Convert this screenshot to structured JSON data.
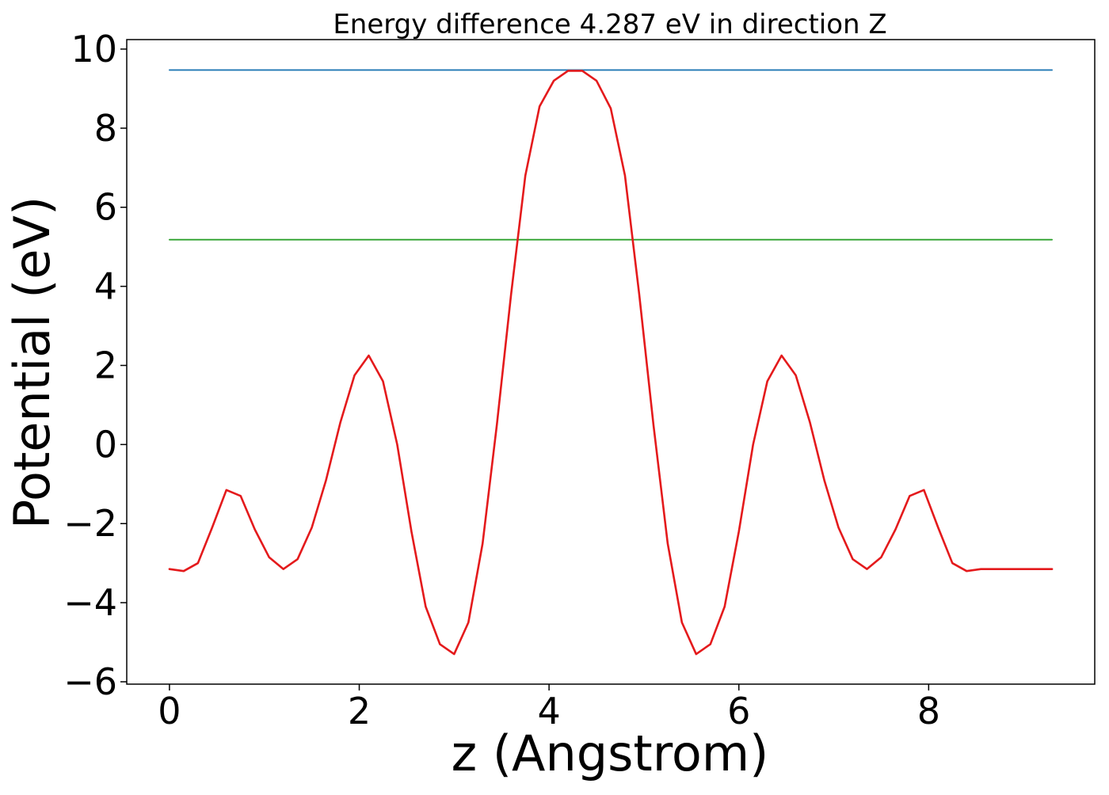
{
  "chart_data": {
    "type": "line",
    "title": "Energy difference 4.287 eV in direction Z",
    "xlabel": "z (Angstrom)",
    "ylabel": "Potential (eV)",
    "xlim": [
      -0.45,
      9.75
    ],
    "ylim": [
      -6.06,
      10.24
    ],
    "xticks": [
      0,
      2,
      4,
      6,
      8
    ],
    "yticks": [
      -6,
      -4,
      -2,
      0,
      2,
      4,
      6,
      8,
      10
    ],
    "xtick_labels": [
      "0",
      "2",
      "4",
      "6",
      "8"
    ],
    "ytick_labels": [
      "−6",
      "−4",
      "−2",
      "0",
      "2",
      "4",
      "6",
      "8",
      "10"
    ],
    "grid": false,
    "legend": "none",
    "series": [
      {
        "color": "#1f77b4",
        "x": [
          0.0,
          9.3
        ],
        "y": [
          9.47,
          9.47
        ]
      },
      {
        "color": "#2ca02c",
        "x": [
          0.0,
          9.3
        ],
        "y": [
          5.18,
          5.18
        ]
      },
      {
        "color": "#e41a1c",
        "x": [
          0.0,
          0.15,
          0.3,
          0.45,
          0.6,
          0.75,
          0.9,
          1.05,
          1.2,
          1.35,
          1.5,
          1.65,
          1.8,
          1.95,
          2.1,
          2.25,
          2.4,
          2.55,
          2.7,
          2.85,
          3.0,
          3.15,
          3.3,
          3.45,
          3.6,
          3.75,
          3.9,
          4.05,
          4.2,
          4.35,
          4.5,
          4.65,
          4.8,
          4.95,
          5.1,
          5.25,
          5.4,
          5.55,
          5.7,
          5.85,
          6.0,
          6.15,
          6.3,
          6.45,
          6.6,
          6.75,
          6.9,
          7.05,
          7.2,
          7.35,
          7.5,
          7.65,
          7.8,
          7.95,
          8.1,
          8.25,
          8.4,
          8.55,
          8.7,
          8.85,
          9.0,
          9.15,
          9.3
        ],
        "y": [
          -3.15,
          -3.2,
          -3.0,
          -2.1,
          -1.15,
          -1.3,
          -2.15,
          -2.85,
          -3.15,
          -2.9,
          -2.1,
          -0.9,
          0.55,
          1.75,
          2.25,
          1.6,
          0.0,
          -2.2,
          -4.1,
          -5.05,
          -5.3,
          -4.5,
          -2.5,
          0.5,
          3.8,
          6.8,
          8.55,
          9.2,
          9.45,
          9.45,
          9.2,
          8.5,
          6.8,
          3.8,
          0.5,
          -2.5,
          -4.5,
          -5.3,
          -5.05,
          -4.1,
          -2.2,
          0.0,
          1.6,
          2.25,
          1.75,
          0.55,
          -0.9,
          -2.1,
          -2.9,
          -3.15,
          -2.85,
          -2.15,
          -1.3,
          -1.15,
          -2.1,
          -3.0,
          -3.2,
          -3.15,
          -3.15,
          -3.15,
          -3.15,
          -3.15,
          -3.15
        ]
      }
    ]
  }
}
